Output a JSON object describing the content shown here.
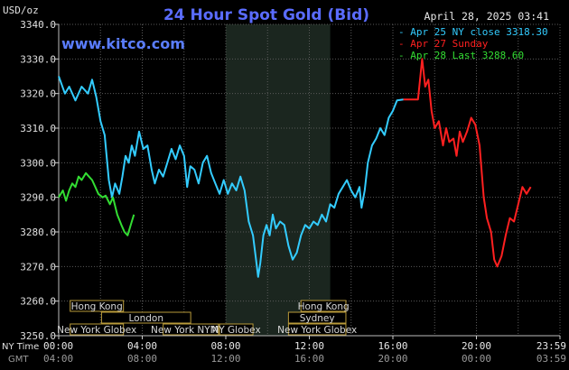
{
  "title": "24 Hour Spot Gold (Bid)",
  "unit_label": "USD/oz",
  "timestamp": "April 28, 2025 03:41",
  "website": "www.kitco.com",
  "legend": [
    {
      "label": "Apr 25 NY close 3318.30",
      "color": "#33ccff"
    },
    {
      "label": "Apr 27 Sunday",
      "color": "#ff2020"
    },
    {
      "label": "Apr 28 Last 3288.60",
      "color": "#33dd33"
    }
  ],
  "x_row_labels": {
    "ny": "NY Time",
    "gmt": "GMT"
  },
  "x_ticks_ny": [
    "00:00",
    "04:00",
    "08:00",
    "12:00",
    "16:00",
    "20:00",
    "23:59"
  ],
  "x_ticks_gmt": [
    "04:00",
    "08:00",
    "12:00",
    "16:00",
    "20:00",
    "00:00",
    "03:59"
  ],
  "sessions": [
    {
      "label": "Hong Kong",
      "start": 0.55,
      "end": 3.1
    },
    {
      "label": "London",
      "start": 2.05,
      "end": 6.32
    },
    {
      "label": "New York Globex",
      "start": 0.55,
      "end": 3.1
    },
    {
      "label": "New York NYMEX",
      "start": 5.0,
      "end": 7.65
    },
    {
      "label": "NY Globex",
      "start": 7.7,
      "end": 9.3
    },
    {
      "label": "Hong Kong",
      "start": 11.6,
      "end": 13.75
    },
    {
      "label": "Sydney",
      "start": 11.0,
      "end": 13.75
    },
    {
      "label": "New York Globex",
      "start": 11.0,
      "end": 13.75
    }
  ],
  "chart_data": {
    "type": "line",
    "ylabel": "USD/oz",
    "ylim": [
      3250,
      3340
    ],
    "xlim": [
      0,
      24
    ],
    "yticks": [
      3250,
      3260,
      3270,
      3280,
      3290,
      3300,
      3310,
      3320,
      3330,
      3340
    ],
    "ytick_labels": [
      "3250.0",
      "3260.0",
      "3270.0",
      "3280.0",
      "3290.0",
      "3300.0",
      "3310.0",
      "3320.0",
      "3330.0",
      "3340.0"
    ],
    "grid": true,
    "highlight_band": [
      8.0,
      13.0
    ],
    "series": [
      {
        "name": "Apr 25 NY close 3318.30",
        "color": "#33ccff",
        "points": [
          [
            0.0,
            3325
          ],
          [
            0.3,
            3320
          ],
          [
            0.5,
            3322
          ],
          [
            0.8,
            3318
          ],
          [
            1.1,
            3322
          ],
          [
            1.4,
            3320
          ],
          [
            1.6,
            3324
          ],
          [
            1.8,
            3319
          ],
          [
            2.0,
            3312
          ],
          [
            2.2,
            3308
          ],
          [
            2.4,
            3295
          ],
          [
            2.55,
            3290
          ],
          [
            2.7,
            3294
          ],
          [
            2.9,
            3291
          ],
          [
            3.05,
            3296
          ],
          [
            3.2,
            3302
          ],
          [
            3.35,
            3300
          ],
          [
            3.5,
            3305
          ],
          [
            3.65,
            3302
          ],
          [
            3.85,
            3309
          ],
          [
            4.05,
            3304
          ],
          [
            4.25,
            3305
          ],
          [
            4.45,
            3298
          ],
          [
            4.6,
            3294
          ],
          [
            4.8,
            3298
          ],
          [
            5.0,
            3296
          ],
          [
            5.2,
            3300
          ],
          [
            5.4,
            3304
          ],
          [
            5.6,
            3301
          ],
          [
            5.8,
            3305
          ],
          [
            6.0,
            3302
          ],
          [
            6.15,
            3293
          ],
          [
            6.3,
            3299
          ],
          [
            6.5,
            3298
          ],
          [
            6.7,
            3294
          ],
          [
            6.9,
            3300
          ],
          [
            7.1,
            3302
          ],
          [
            7.3,
            3297
          ],
          [
            7.5,
            3294
          ],
          [
            7.7,
            3291
          ],
          [
            7.9,
            3295
          ],
          [
            8.1,
            3291
          ],
          [
            8.3,
            3294
          ],
          [
            8.5,
            3292
          ],
          [
            8.7,
            3296
          ],
          [
            8.9,
            3292
          ],
          [
            9.1,
            3283
          ],
          [
            9.3,
            3279
          ],
          [
            9.45,
            3272
          ],
          [
            9.55,
            3267
          ],
          [
            9.65,
            3271
          ],
          [
            9.8,
            3279
          ],
          [
            9.95,
            3282
          ],
          [
            10.1,
            3279
          ],
          [
            10.25,
            3285
          ],
          [
            10.4,
            3281
          ],
          [
            10.6,
            3283
          ],
          [
            10.8,
            3282
          ],
          [
            11.0,
            3276
          ],
          [
            11.2,
            3272
          ],
          [
            11.4,
            3274
          ],
          [
            11.6,
            3279
          ],
          [
            11.8,
            3282
          ],
          [
            12.0,
            3281
          ],
          [
            12.2,
            3283
          ],
          [
            12.4,
            3282
          ],
          [
            12.6,
            3285
          ],
          [
            12.8,
            3283
          ],
          [
            13.0,
            3288
          ],
          [
            13.2,
            3287
          ],
          [
            13.4,
            3291
          ],
          [
            13.6,
            3293
          ],
          [
            13.8,
            3295
          ],
          [
            14.0,
            3292
          ],
          [
            14.2,
            3290
          ],
          [
            14.4,
            3293
          ],
          [
            14.5,
            3287
          ],
          [
            14.65,
            3292
          ],
          [
            14.8,
            3300
          ],
          [
            15.0,
            3305
          ],
          [
            15.2,
            3307
          ],
          [
            15.4,
            3310
          ],
          [
            15.6,
            3308
          ],
          [
            15.8,
            3313
          ],
          [
            16.0,
            3315
          ],
          [
            16.2,
            3318
          ],
          [
            16.5,
            3318.3
          ]
        ]
      },
      {
        "name": "Apr 27 Sunday",
        "color": "#ff2020",
        "points": [
          [
            16.5,
            3318.3
          ],
          [
            17.2,
            3318.3
          ],
          [
            17.4,
            3330
          ],
          [
            17.55,
            3322
          ],
          [
            17.7,
            3324
          ],
          [
            17.85,
            3315
          ],
          [
            18.0,
            3310
          ],
          [
            18.2,
            3312
          ],
          [
            18.4,
            3305
          ],
          [
            18.55,
            3310
          ],
          [
            18.7,
            3306
          ],
          [
            18.9,
            3307
          ],
          [
            19.05,
            3302
          ],
          [
            19.2,
            3309
          ],
          [
            19.35,
            3306
          ],
          [
            19.55,
            3309
          ],
          [
            19.75,
            3313
          ],
          [
            19.95,
            3311
          ],
          [
            20.15,
            3305
          ],
          [
            20.35,
            3290
          ],
          [
            20.5,
            3284
          ],
          [
            20.7,
            3280
          ],
          [
            20.85,
            3272
          ],
          [
            21.0,
            3270
          ],
          [
            21.2,
            3273
          ],
          [
            21.4,
            3279
          ],
          [
            21.6,
            3284
          ],
          [
            21.8,
            3283
          ],
          [
            22.0,
            3288
          ],
          [
            22.2,
            3293
          ],
          [
            22.4,
            3291
          ],
          [
            22.6,
            3293
          ]
        ]
      },
      {
        "name": "Apr 28 Last 3288.60",
        "color": "#33dd33",
        "points": [
          [
            0.0,
            3290
          ],
          [
            0.2,
            3292
          ],
          [
            0.35,
            3289
          ],
          [
            0.5,
            3292
          ],
          [
            0.65,
            3294
          ],
          [
            0.8,
            3293
          ],
          [
            0.95,
            3296
          ],
          [
            1.1,
            3295
          ],
          [
            1.3,
            3297
          ],
          [
            1.45,
            3296
          ],
          [
            1.6,
            3295
          ],
          [
            1.75,
            3293
          ],
          [
            1.9,
            3291
          ],
          [
            2.1,
            3290
          ],
          [
            2.25,
            3290.5
          ],
          [
            2.45,
            3288
          ],
          [
            2.6,
            3290
          ],
          [
            2.8,
            3285
          ],
          [
            3.0,
            3282
          ],
          [
            3.15,
            3280
          ],
          [
            3.3,
            3279
          ],
          [
            3.4,
            3281
          ],
          [
            3.5,
            3283
          ],
          [
            3.6,
            3285
          ]
        ]
      }
    ]
  }
}
